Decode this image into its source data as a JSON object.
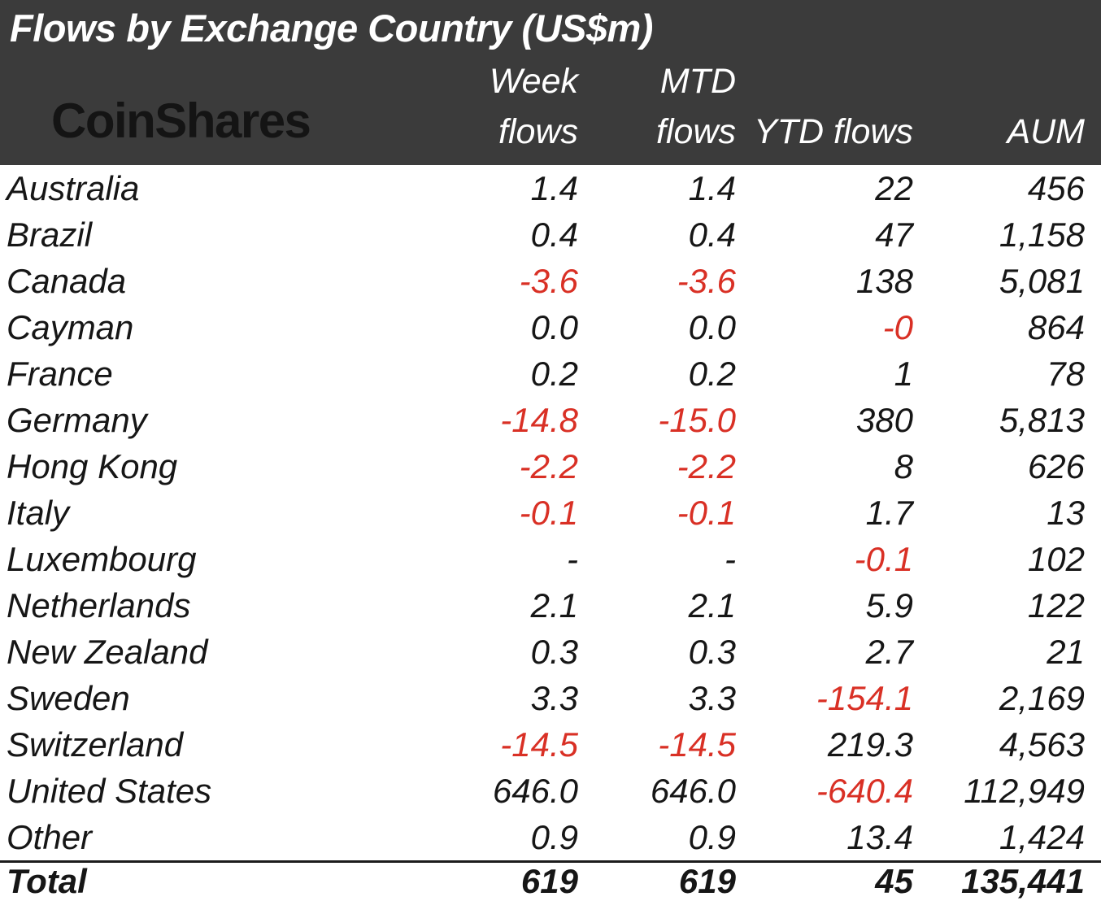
{
  "header": {
    "title": "Flows by Exchange Country (US$m)",
    "logo": "CoinShares",
    "columns": [
      {
        "line1": "Week",
        "line2": "flows"
      },
      {
        "line1": "MTD",
        "line2": "flows"
      },
      {
        "line1": "",
        "line2": "YTD flows"
      },
      {
        "line1": "",
        "line2": "AUM"
      }
    ]
  },
  "colors": {
    "header_bg": "#3b3b3b",
    "header_text": "#ffffff",
    "logo_text": "#141414",
    "body_text": "#161616",
    "negative": "#d93025"
  },
  "chart_data": {
    "type": "table",
    "title": "Flows by Exchange Country (US$m)",
    "columns": [
      "Country",
      "Week flows",
      "MTD flows",
      "YTD flows",
      "AUM"
    ],
    "rows": [
      [
        "Australia",
        "1.4",
        "1.4",
        "22",
        "456"
      ],
      [
        "Brazil",
        "0.4",
        "0.4",
        "47",
        "1,158"
      ],
      [
        "Canada",
        "-3.6",
        "-3.6",
        "138",
        "5,081"
      ],
      [
        "Cayman",
        "0.0",
        "0.0",
        "-0",
        "864"
      ],
      [
        "France",
        "0.2",
        "0.2",
        "1",
        "78"
      ],
      [
        "Germany",
        "-14.8",
        "-15.0",
        "380",
        "5,813"
      ],
      [
        "Hong Kong",
        "-2.2",
        "-2.2",
        "8",
        "626"
      ],
      [
        "Italy",
        "-0.1",
        "-0.1",
        "1.7",
        "13"
      ],
      [
        "Luxembourg",
        "-",
        "-",
        "-0.1",
        "102"
      ],
      [
        "Netherlands",
        "2.1",
        "2.1",
        "5.9",
        "122"
      ],
      [
        "New Zealand",
        "0.3",
        "0.3",
        "2.7",
        "21"
      ],
      [
        "Sweden",
        "3.3",
        "3.3",
        "-154.1",
        "2,169"
      ],
      [
        "Switzerland",
        "-14.5",
        "-14.5",
        "219.3",
        "4,563"
      ],
      [
        "United States",
        "646.0",
        "646.0",
        "-640.4",
        "112,949"
      ],
      [
        "Other",
        "0.9",
        "0.9",
        "13.4",
        "1,424"
      ]
    ],
    "total_row": [
      "Total",
      "619",
      "619",
      "45",
      "135,441"
    ]
  }
}
